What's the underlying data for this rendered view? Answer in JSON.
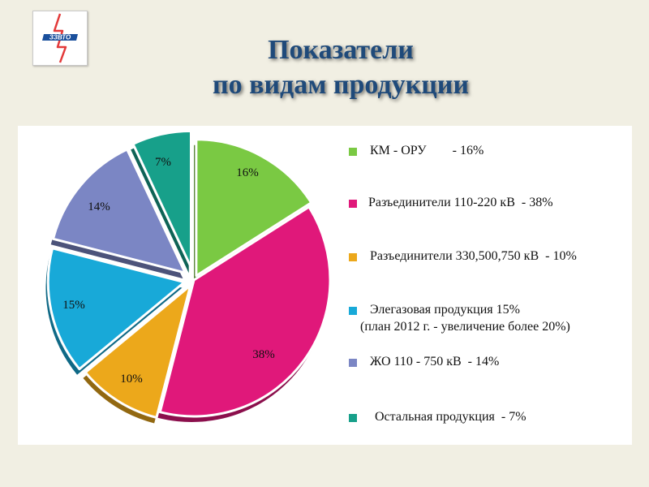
{
  "title": {
    "line1": "Показатели",
    "line2": "по видам продукции"
  },
  "logo": {
    "text": "ЗЗВТО",
    "icon": "lightning-bolt-logo",
    "color": "#1a4f9c"
  },
  "chart_data": {
    "type": "pie",
    "style": "3d-exploded",
    "legend_position": "right",
    "slices": [
      {
        "label": "КМ - ОРУ        - 16%",
        "value": 16,
        "data_label": "16%",
        "color": "#7ac943"
      },
      {
        "label": "Разъединители 110-220 кВ  - 38%",
        "value": 38,
        "data_label": "38%",
        "color": "#e0187a"
      },
      {
        "label": "Разъединители 330,500,750 кВ  - 10%",
        "value": 10,
        "data_label": "10%",
        "color": "#eca81b"
      },
      {
        "label": "Элегазовая продукция 15%",
        "sublabel": "(план 2012 г. - увеличение более 20%)",
        "value": 15,
        "data_label": "15%",
        "color": "#18a9d8"
      },
      {
        "label": "ЖО 110 - 750 кВ  - 14%",
        "value": 14,
        "data_label": "14%",
        "color": "#7b86c4"
      },
      {
        "label": " Остальная продукция  - 7%",
        "value": 7,
        "data_label": "7%",
        "color": "#17a08a"
      }
    ]
  }
}
